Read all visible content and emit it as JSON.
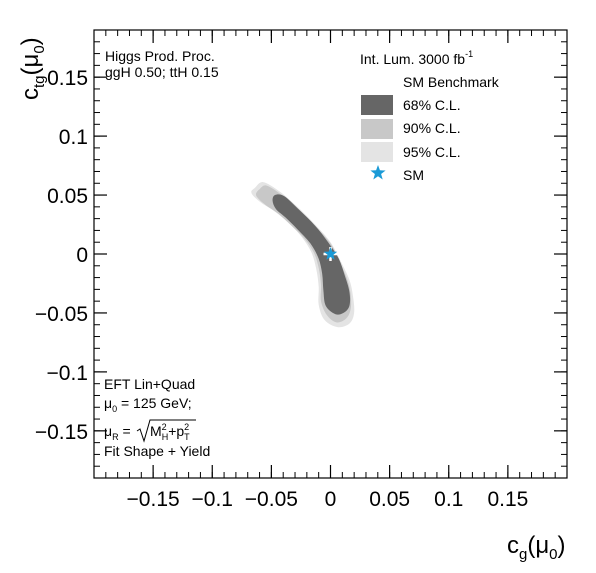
{
  "chart_data": {
    "type": "contour",
    "xlabel": "c_g(μ_0)",
    "xlabel_main": "c",
    "xlabel_sub": "g",
    "xlabel_arg": "(μ",
    "xlabel_arg_sub": "0",
    "xlabel_close": ")",
    "ylabel": "c_tg(μ_0)",
    "ylabel_main": "c",
    "ylabel_sub": "tg",
    "ylabel_arg": "(μ",
    "ylabel_arg_sub": "0",
    "ylabel_close": ")",
    "xlim": [
      -0.2,
      0.2
    ],
    "ylim": [
      -0.19,
      0.19
    ],
    "x_ticks": [
      -0.15,
      -0.1,
      -0.05,
      0,
      0.05,
      0.1,
      0.15
    ],
    "x_tick_labels": [
      "−0.15",
      "−0.1",
      "−0.05",
      "0",
      "0.05",
      "0.1",
      "0.15"
    ],
    "y_ticks": [
      -0.15,
      -0.1,
      -0.05,
      0,
      0.05,
      0.1,
      0.15
    ],
    "y_tick_labels": [
      "−0.15",
      "−0.1",
      "−0.05",
      "0",
      "0.05",
      "0.1",
      "0.15"
    ],
    "grid": false,
    "legend_placement": "top-right",
    "annotations": {
      "top_left_line1": "Higgs Prod. Proc.",
      "top_left_line2": "ggH  0.50; ttH 0.15",
      "lumi_text": "Int. Lum. 3000 fb",
      "lumi_sup": "-1",
      "bottom_left_line1": "EFT Lin+Quad",
      "bottom_left_line2_mu": "μ",
      "bottom_left_line2_sub": "0",
      "bottom_left_line2_rest": " = 125 GeV;",
      "bottom_left_line3_mu": "μ",
      "bottom_left_line3_sub": "R",
      "bottom_left_line3_eq": " =",
      "bottom_left_line3_M": "M",
      "bottom_left_line3_M_sup": "2",
      "bottom_left_line3_M_sub": "H",
      "bottom_left_line3_plus": "+p",
      "bottom_left_line3_p_sup": "2",
      "bottom_left_line3_p_sub": "T",
      "bottom_left_line4": "Fit Shape + Yield"
    },
    "legend": {
      "title": "SM Benchmark",
      "entries": [
        {
          "label": "68% C.L.",
          "color": "#666666"
        },
        {
          "label": "90% C.L.",
          "color": "#c8c8c8"
        },
        {
          "label": "95% C.L.",
          "color": "#e4e4e4"
        },
        {
          "label": "SM",
          "color": "#1a9ad6",
          "marker": "star"
        }
      ]
    },
    "series": [
      {
        "name": "95% C.L.",
        "color": "#e4e4e4",
        "x": [
          -0.064,
          -0.057,
          -0.043,
          -0.028,
          -0.014,
          0.0,
          0.008,
          0.016,
          0.019,
          0.02,
          0.016,
          0.006,
          -0.005,
          -0.01,
          -0.01,
          -0.012,
          -0.016,
          -0.024,
          -0.035,
          -0.047,
          -0.058,
          -0.065,
          -0.067
        ],
        "y": [
          0.056,
          0.061,
          0.053,
          0.04,
          0.026,
          0.01,
          -0.005,
          -0.022,
          -0.036,
          -0.05,
          -0.059,
          -0.062,
          -0.056,
          -0.043,
          -0.028,
          -0.013,
          0.001,
          0.014,
          0.026,
          0.036,
          0.043,
          0.049,
          0.053
        ]
      },
      {
        "name": "90% C.L.",
        "color": "#c8c8c8",
        "x": [
          -0.06,
          -0.054,
          -0.041,
          -0.027,
          -0.013,
          0.0,
          0.007,
          0.014,
          0.017,
          0.017,
          0.013,
          0.005,
          -0.003,
          -0.008,
          -0.008,
          -0.01,
          -0.014,
          -0.022,
          -0.033,
          -0.044,
          -0.054,
          -0.061,
          -0.063
        ],
        "y": [
          0.055,
          0.058,
          0.05,
          0.038,
          0.024,
          0.009,
          -0.005,
          -0.021,
          -0.034,
          -0.047,
          -0.055,
          -0.058,
          -0.052,
          -0.04,
          -0.026,
          -0.012,
          0.001,
          0.013,
          0.024,
          0.034,
          0.041,
          0.047,
          0.051
        ]
      },
      {
        "name": "68% C.L.",
        "color": "#666666",
        "x": [
          -0.047,
          -0.039,
          -0.026,
          -0.013,
          -0.002,
          0.007,
          0.012,
          0.016,
          0.016,
          0.011,
          0.004,
          -0.004,
          -0.006,
          -0.007,
          -0.01,
          -0.017,
          -0.028,
          -0.038,
          -0.046,
          -0.049
        ],
        "y": [
          0.05,
          0.049,
          0.037,
          0.024,
          0.01,
          -0.004,
          -0.018,
          -0.032,
          -0.044,
          -0.05,
          -0.051,
          -0.044,
          -0.031,
          -0.017,
          -0.004,
          0.009,
          0.021,
          0.031,
          0.038,
          0.045
        ]
      },
      {
        "name": "SM",
        "type": "scatter",
        "marker": "star",
        "color": "#1a9ad6",
        "x": [
          0
        ],
        "y": [
          0
        ]
      }
    ]
  }
}
